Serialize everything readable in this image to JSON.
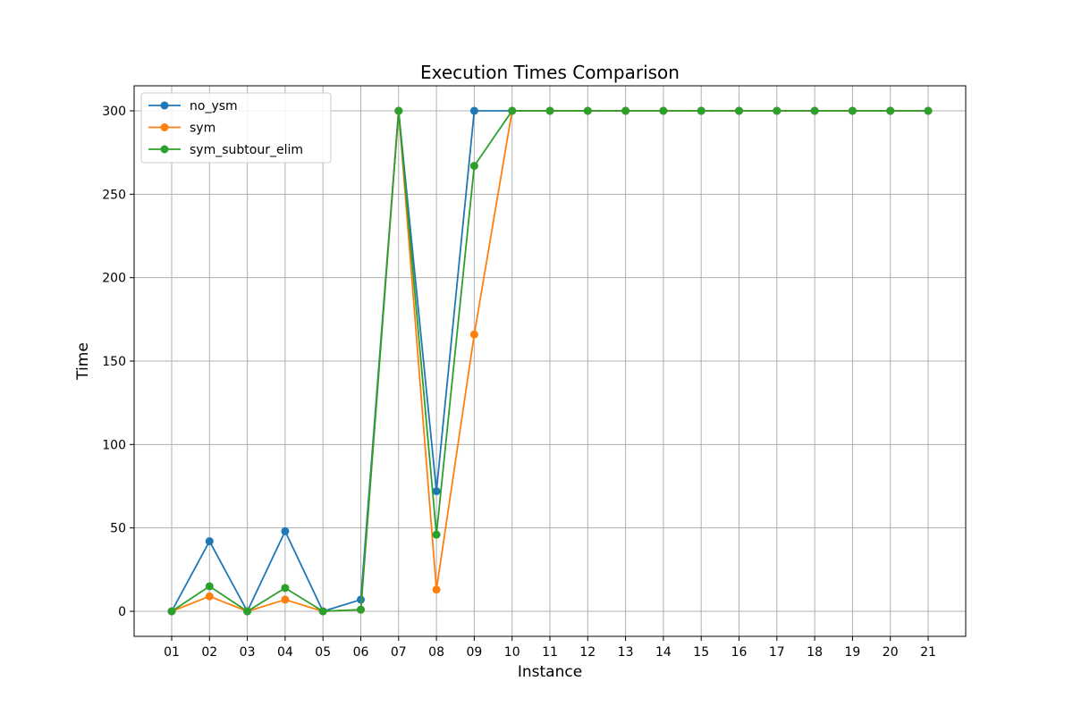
{
  "chart_data": {
    "type": "line",
    "title": "Execution Times Comparison",
    "xlabel": "Instance",
    "ylabel": "Time",
    "categories": [
      "01",
      "02",
      "03",
      "04",
      "05",
      "06",
      "07",
      "08",
      "09",
      "10",
      "11",
      "12",
      "13",
      "14",
      "15",
      "16",
      "17",
      "18",
      "19",
      "20",
      "21"
    ],
    "y_ticks": [
      "0",
      "50",
      "100",
      "150",
      "200",
      "250",
      "300"
    ],
    "ylim": [
      -15,
      315
    ],
    "grid": true,
    "legend_position": "top-left",
    "series": [
      {
        "name": "no_ysm",
        "color": "#1f77b4",
        "values": [
          0,
          42,
          0,
          48,
          0,
          7,
          300,
          72,
          300,
          300,
          300,
          300,
          300,
          300,
          300,
          300,
          300,
          300,
          300,
          300,
          300
        ]
      },
      {
        "name": "sym",
        "color": "#ff7f0e",
        "values": [
          0,
          9,
          0,
          7,
          0,
          1,
          300,
          13,
          166,
          300,
          300,
          300,
          300,
          300,
          300,
          300,
          300,
          300,
          300,
          300,
          300
        ]
      },
      {
        "name": "sym_subtour_elim",
        "color": "#2ca02c",
        "values": [
          0,
          15,
          0,
          14,
          0,
          1,
          300,
          46,
          267,
          300,
          300,
          300,
          300,
          300,
          300,
          300,
          300,
          300,
          300,
          300,
          300
        ]
      }
    ]
  }
}
